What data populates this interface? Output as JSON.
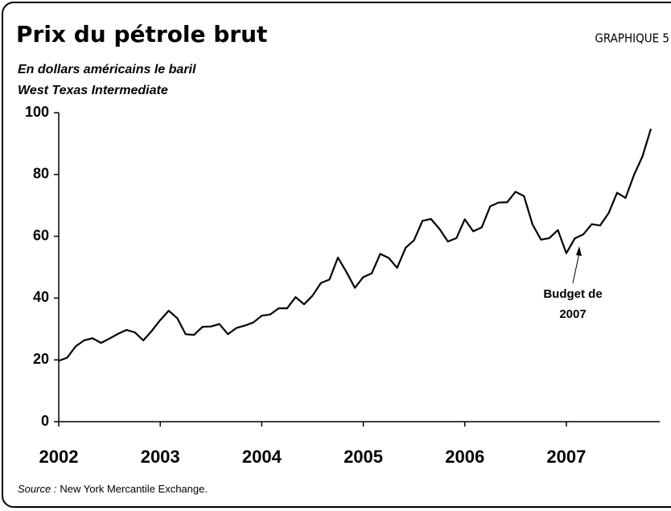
{
  "chart_data": {
    "type": "line",
    "title": "Prix du pétrole brut",
    "label": "GRAPHIQUE 5",
    "subtitle": "En dollars américains le baril",
    "subtitle2": "West Texas Intermediate",
    "source_label": "Source :",
    "source_text": "New York Mercantile Exchange.",
    "annotation": {
      "line1": "Budget de",
      "line2": "2007"
    },
    "x": [
      2002,
      2002.083,
      2002.167,
      2002.25,
      2002.333,
      2002.417,
      2002.5,
      2002.583,
      2002.667,
      2002.75,
      2002.833,
      2002.917,
      2003,
      2003.083,
      2003.167,
      2003.25,
      2003.333,
      2003.417,
      2003.5,
      2003.583,
      2003.667,
      2003.75,
      2003.833,
      2003.917,
      2004,
      2004.083,
      2004.167,
      2004.25,
      2004.333,
      2004.417,
      2004.5,
      2004.583,
      2004.667,
      2004.75,
      2004.833,
      2004.917,
      2005,
      2005.083,
      2005.167,
      2005.25,
      2005.333,
      2005.417,
      2005.5,
      2005.583,
      2005.667,
      2005.75,
      2005.833,
      2005.917,
      2006,
      2006.083,
      2006.167,
      2006.25,
      2006.333,
      2006.417,
      2006.5,
      2006.583,
      2006.667,
      2006.75,
      2006.833,
      2006.917,
      2007,
      2007.083,
      2007.167,
      2007.25,
      2007.333,
      2007.417,
      2007.5,
      2007.583,
      2007.667,
      2007.75,
      2007.833
    ],
    "series": [
      {
        "name": "WTI",
        "color": "#000000",
        "values": [
          19.7,
          20.7,
          24.4,
          26.3,
          27.0,
          25.5,
          26.9,
          28.4,
          29.7,
          28.9,
          26.3,
          29.4,
          32.9,
          35.9,
          33.5,
          28.3,
          28.1,
          30.7,
          30.8,
          31.6,
          28.3,
          30.3,
          31.1,
          32.1,
          34.3,
          34.7,
          36.7,
          36.7,
          40.3,
          38.0,
          40.8,
          44.9,
          46.0,
          53.1,
          48.5,
          43.3,
          46.8,
          48.0,
          54.3,
          53.0,
          49.8,
          56.3,
          58.7,
          65.0,
          65.6,
          62.4,
          58.3,
          59.4,
          65.5,
          61.6,
          62.9,
          69.7,
          70.9,
          71.0,
          74.4,
          73.0,
          63.8,
          58.9,
          59.4,
          62.0,
          54.5,
          59.3,
          60.6,
          63.9,
          63.5,
          67.5,
          74.1,
          72.4,
          79.9,
          85.8,
          94.8
        ]
      }
    ],
    "xlim": [
      2002,
      2007.92
    ],
    "xticks": [
      2002,
      2003,
      2004,
      2005,
      2006,
      2007
    ],
    "ylim": [
      0,
      100
    ],
    "yticks": [
      0,
      20,
      40,
      60,
      80,
      100
    ],
    "grid": false
  }
}
